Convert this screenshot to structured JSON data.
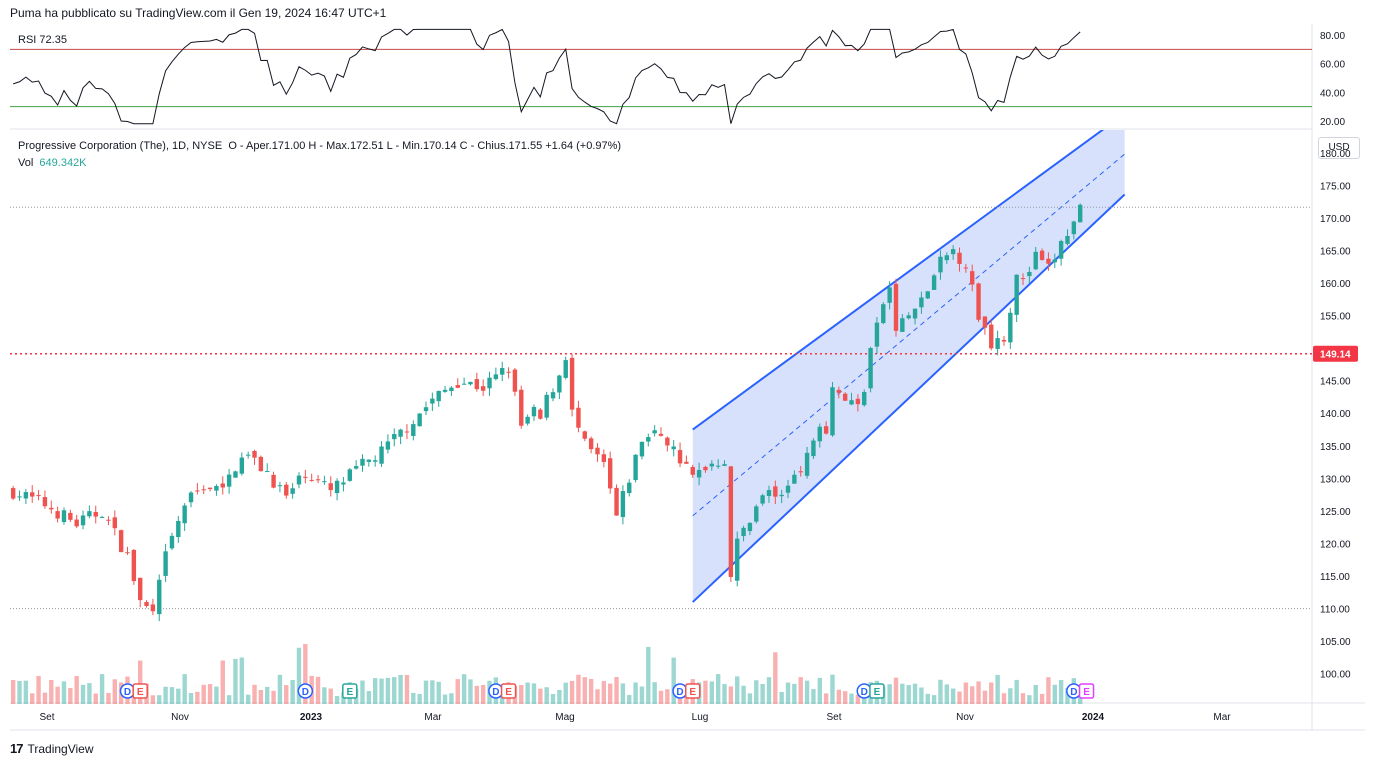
{
  "header": {
    "published": "Puma ha pubblicato su TradingView.com il Gen 19, 2024 16:47 UTC+1"
  },
  "rsi": {
    "label": "RSI",
    "value": "72.35",
    "upper_level": 70,
    "lower_level": 30,
    "ticks": [
      "80.00",
      "60.00",
      "40.00",
      "20.00"
    ]
  },
  "legend": {
    "symbol": "Progressive Corporation (The), 1D, NYSE",
    "ohlc": "O - Aper.171.00  H - Max.172.51  L - Min.170.14  C - Chius.171.55  +1.64 (+0.97%)",
    "vol_label": "Vol",
    "vol_value": "649.342K"
  },
  "currency": "USD",
  "price_label": "149.14",
  "footer": {
    "brand": "TradingView"
  },
  "colors": {
    "up": "#26a69a",
    "down": "#ef5350",
    "channel": "#2962ff",
    "channel_fill": "#d1dcfb",
    "hline": "#f23645",
    "rsi_upper": "#b71c1c",
    "rsi_lower": "#43a047"
  },
  "chart_data": {
    "type": "candlestick",
    "y_ticks": [
      "180.00",
      "175.00",
      "170.00",
      "165.00",
      "160.00",
      "155.00",
      "150.00",
      "145.00",
      "140.00",
      "135.00",
      "130.00",
      "125.00",
      "120.00",
      "115.00",
      "110.00",
      "105.00",
      "100.00"
    ],
    "x_ticks": [
      "Set",
      "Nov",
      "2023",
      "Mar",
      "Mag",
      "Lug",
      "Set",
      "Nov",
      "2024",
      "Mar"
    ],
    "horizontal_line": 149.14,
    "last_close": 171.55,
    "path": [
      [
        0,
        128
      ],
      [
        5,
        126
      ],
      [
        10,
        123
      ],
      [
        14,
        125
      ],
      [
        18,
        118
      ],
      [
        20,
        111
      ],
      [
        22,
        109
      ],
      [
        24,
        118
      ],
      [
        27,
        126
      ],
      [
        30,
        129
      ],
      [
        33,
        128
      ],
      [
        36,
        134
      ],
      [
        40,
        131
      ],
      [
        43,
        127
      ],
      [
        46,
        131
      ],
      [
        50,
        128
      ],
      [
        55,
        132
      ],
      [
        58,
        134
      ],
      [
        62,
        138
      ],
      [
        66,
        142
      ],
      [
        70,
        145
      ],
      [
        74,
        144
      ],
      [
        78,
        147
      ],
      [
        80,
        138
      ],
      [
        82,
        140
      ],
      [
        83,
        139
      ],
      [
        84,
        142
      ],
      [
        86,
        146
      ],
      [
        87,
        149
      ],
      [
        88,
        140
      ],
      [
        90,
        135
      ],
      [
        93,
        132
      ],
      [
        95,
        124
      ],
      [
        97,
        130
      ],
      [
        99,
        136
      ],
      [
        102,
        137
      ],
      [
        105,
        133
      ],
      [
        107,
        130
      ],
      [
        109,
        132
      ],
      [
        112,
        133
      ],
      [
        113,
        115
      ],
      [
        114,
        120
      ],
      [
        117,
        126
      ],
      [
        119,
        128
      ],
      [
        121,
        127
      ],
      [
        123,
        131
      ],
      [
        125,
        133
      ],
      [
        127,
        139
      ],
      [
        128,
        137
      ],
      [
        129,
        145
      ],
      [
        130,
        143
      ],
      [
        133,
        141
      ],
      [
        134,
        144
      ],
      [
        135,
        150
      ],
      [
        136,
        153
      ],
      [
        137,
        157
      ],
      [
        138,
        159
      ],
      [
        139,
        153
      ],
      [
        141,
        155
      ],
      [
        143,
        157
      ],
      [
        146,
        163
      ],
      [
        148,
        165
      ],
      [
        150,
        163
      ],
      [
        152,
        155
      ],
      [
        154,
        151
      ],
      [
        156,
        152
      ],
      [
        157,
        156
      ],
      [
        158,
        162
      ],
      [
        159,
        160
      ],
      [
        161,
        164
      ],
      [
        163,
        162
      ],
      [
        165,
        166
      ],
      [
        167,
        169
      ],
      [
        168,
        171.5
      ]
    ],
    "channel": {
      "upper": [
        [
          107,
          137.5
        ],
        [
          175,
          186
        ]
      ],
      "lower": [
        [
          107,
          111
        ],
        [
          175,
          173.6
        ]
      ]
    },
    "volume_note": "volume histogram bars",
    "events": [
      {
        "label": "D",
        "x": 18,
        "type": "dividend"
      },
      {
        "label": "E",
        "x": 20,
        "type": "earnings-down"
      },
      {
        "label": "D",
        "x": 46,
        "type": "dividend"
      },
      {
        "label": "E",
        "x": 53,
        "type": "earnings-up"
      },
      {
        "label": "D",
        "x": 76,
        "type": "dividend"
      },
      {
        "label": "E",
        "x": 78,
        "type": "earnings-down"
      },
      {
        "label": "D",
        "x": 105,
        "type": "dividend"
      },
      {
        "label": "E",
        "x": 107,
        "type": "earnings-down"
      },
      {
        "label": "D",
        "x": 134,
        "type": "dividend"
      },
      {
        "label": "E",
        "x": 136,
        "type": "earnings-up"
      },
      {
        "label": "D",
        "x": 167,
        "type": "dividend"
      },
      {
        "label": "E",
        "x": 169,
        "type": "earnings-next"
      }
    ]
  }
}
